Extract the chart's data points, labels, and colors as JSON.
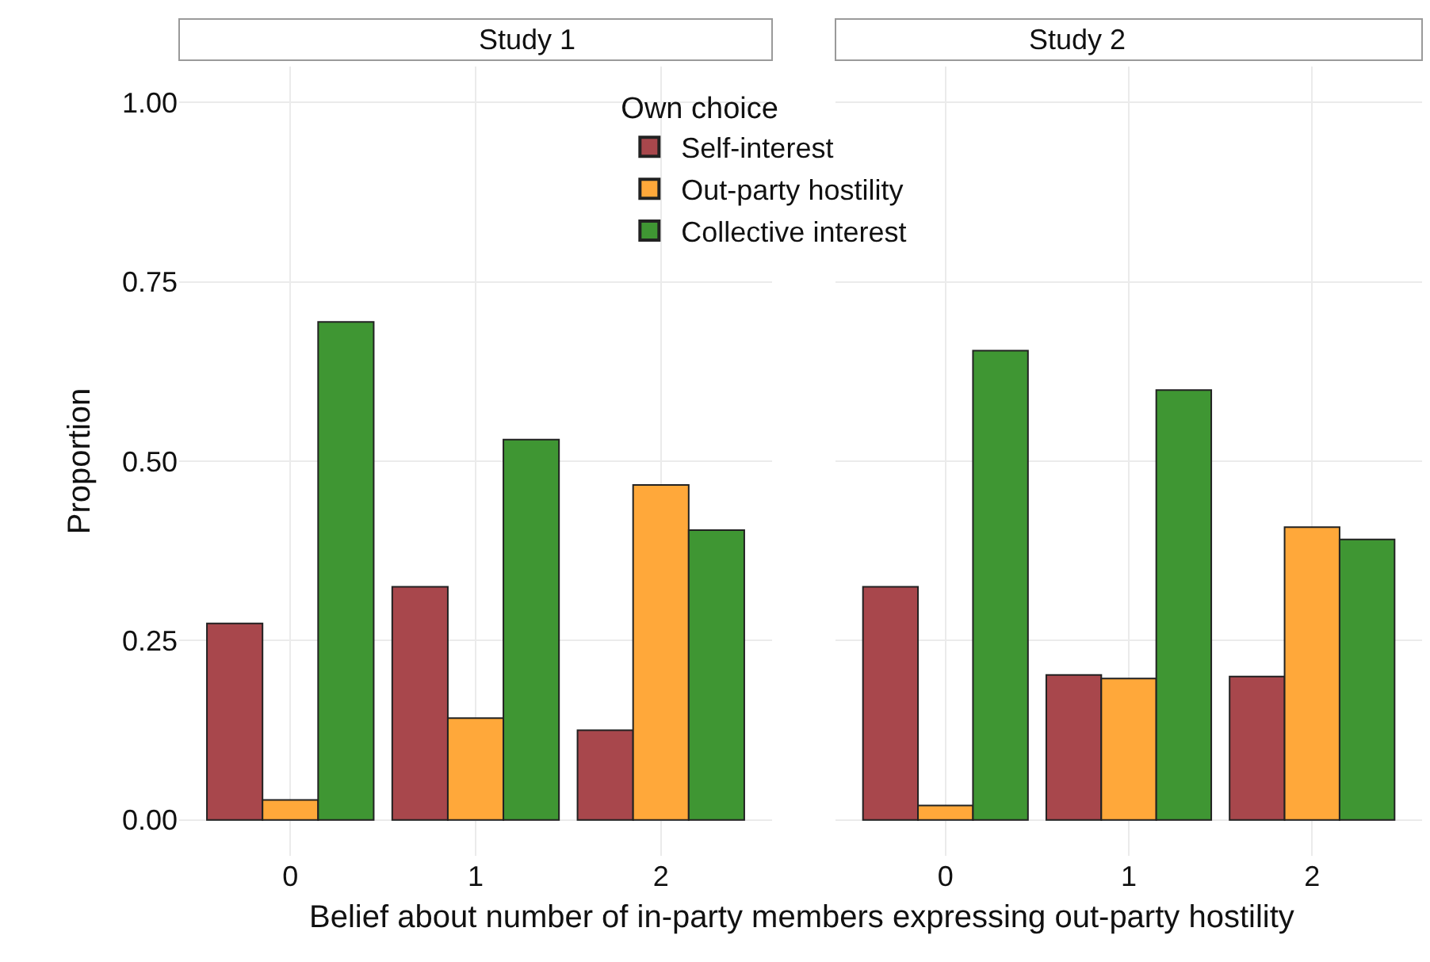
{
  "chart_data": [
    {
      "type": "bar",
      "title": "Study 1",
      "xlabel": "Belief about number of in-party members expressing out-party hostility",
      "ylabel": "Proportion",
      "legend_title": "Own choice",
      "legend": "top right",
      "grid": true,
      "categories": [
        "0",
        "1",
        "2"
      ],
      "ylim": [
        -0.05,
        1.05
      ],
      "yticks": [
        {
          "value": 0,
          "label": "0.00"
        },
        {
          "value": 0.25,
          "label": "0.25"
        },
        {
          "value": 0.5,
          "label": "0.50"
        },
        {
          "value": 0.75,
          "label": "0.75"
        },
        {
          "value": 1,
          "label": "1.00"
        }
      ],
      "series": [
        {
          "name": "Self-interest",
          "color": "#a8474c",
          "values": [
            0.274,
            0.325,
            0.125
          ]
        },
        {
          "name": "Out-party hostility",
          "color": "#ffa83a",
          "values": [
            0.028,
            0.142,
            0.467
          ]
        },
        {
          "name": "Collective interest",
          "color": "#3f9633",
          "values": [
            0.694,
            0.53,
            0.404
          ]
        }
      ]
    },
    {
      "type": "bar",
      "title": "Study 2",
      "grid": true,
      "tick_labels": "x",
      "categories": [
        "0",
        "1",
        "2"
      ],
      "ylim": [
        -0.05,
        1.05
      ],
      "yticks": [
        {
          "value": 0,
          "label": null
        },
        {
          "value": 0.25,
          "label": null
        },
        {
          "value": 0.5,
          "label": null
        },
        {
          "value": 0.75,
          "label": null
        },
        {
          "value": 1,
          "label": null
        }
      ],
      "series": [
        {
          "color": "#a8474c",
          "values": [
            0.325,
            0.202,
            0.2
          ]
        },
        {
          "color": "#ffa83a",
          "values": [
            0.02,
            0.197,
            0.408
          ]
        },
        {
          "color": "#3f9633",
          "values": [
            0.654,
            0.599,
            0.391
          ]
        }
      ]
    }
  ]
}
